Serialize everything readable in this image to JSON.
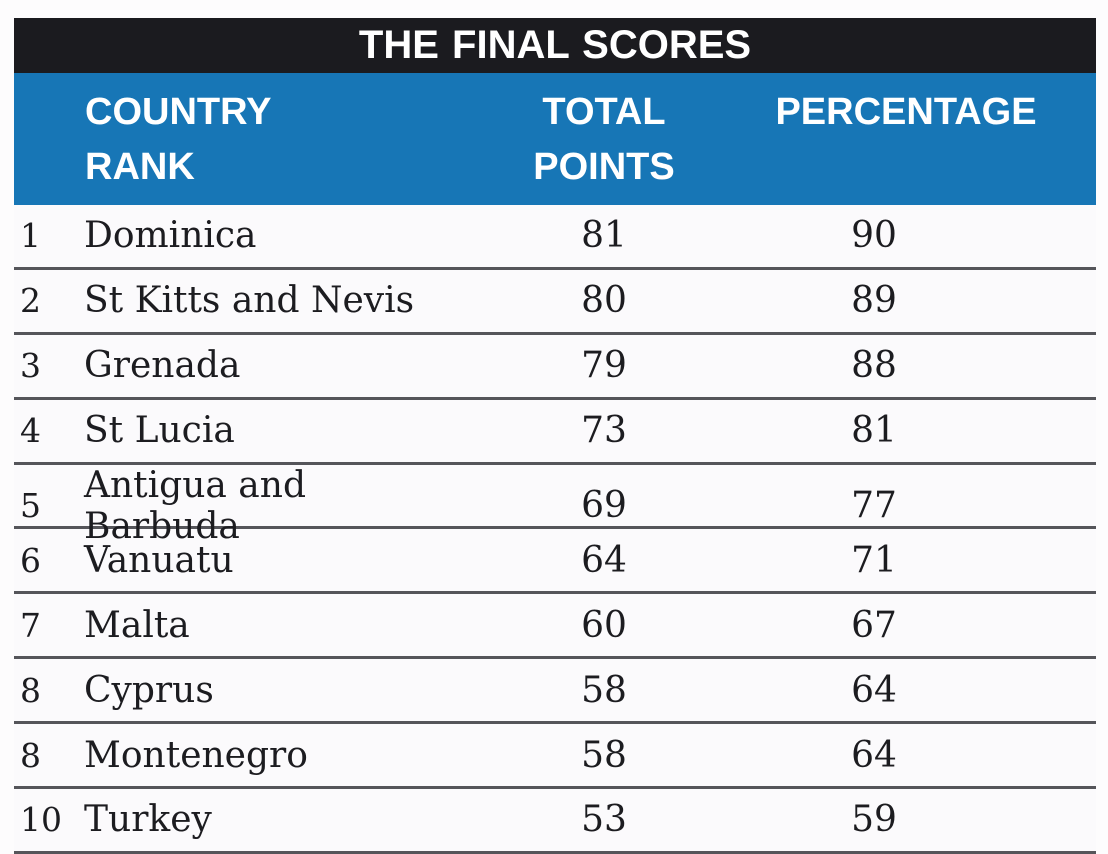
{
  "chart_data": {
    "type": "table",
    "title": "THE FINAL SCORES",
    "columns": [
      "COUNTRY RANK",
      "TOTAL POINTS",
      "PERCENTAGE"
    ],
    "rows": [
      {
        "rank": "1",
        "country": "Dominica",
        "points": "81",
        "percentage": "90"
      },
      {
        "rank": "2",
        "country": "St Kitts and Nevis",
        "points": "80",
        "percentage": "89"
      },
      {
        "rank": "3",
        "country": "Grenada",
        "points": "79",
        "percentage": "88"
      },
      {
        "rank": "4",
        "country": "St Lucia",
        "points": "73",
        "percentage": "81"
      },
      {
        "rank": "5",
        "country": "Antigua and Barbuda",
        "points": "69",
        "percentage": "77"
      },
      {
        "rank": "6",
        "country": "Vanuatu",
        "points": "64",
        "percentage": "71"
      },
      {
        "rank": "7",
        "country": "Malta",
        "points": "60",
        "percentage": "67"
      },
      {
        "rank": "8",
        "country": "Cyprus",
        "points": "58",
        "percentage": "64"
      },
      {
        "rank": "8",
        "country": "Montenegro",
        "points": "58",
        "percentage": "64"
      },
      {
        "rank": "10",
        "country": "Turkey",
        "points": "53",
        "percentage": "59"
      }
    ],
    "layout": "ranked table, title bar on top, blue column-header band, light rows with dark rule separators"
  },
  "header": {
    "country_rank_line1": "COUNTRY",
    "country_rank_line2": "RANK",
    "total_points_line1": "TOTAL",
    "total_points_line2": "POINTS",
    "percentage_line1": "PERCENTAGE"
  },
  "colors": {
    "title_bar_bg": "#1b1b1f",
    "title_text": "#ffffff",
    "header_bg": "#1776b6",
    "header_text": "#ffffff",
    "row_bg": "#fbfafc",
    "row_divider": "#55555a",
    "body_text": "#1c1c20",
    "page_bg": "#fdfcfd"
  }
}
